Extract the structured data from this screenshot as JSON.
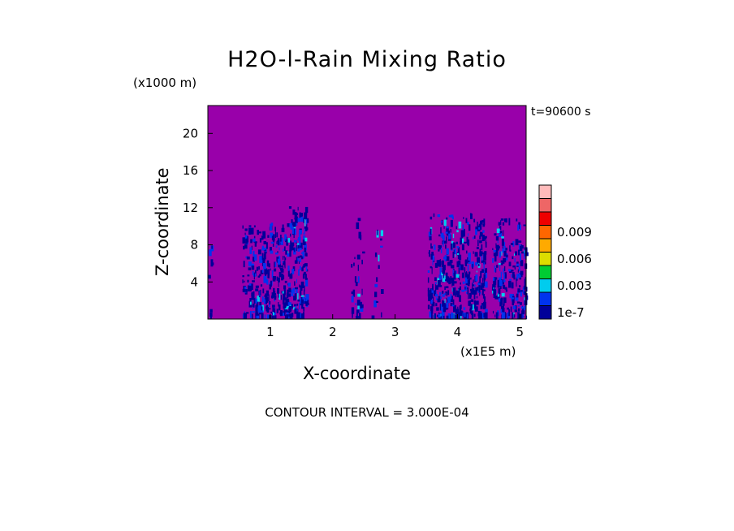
{
  "chart_data": {
    "type": "heatmap",
    "title": "H2O-l-Rain Mixing Ratio",
    "xlabel": "X-coordinate",
    "ylabel": "Z-coordinate",
    "x_unit_label": "(x1E5 m)",
    "y_unit_label": "(x1000 m)",
    "time_label": "t=90600 s",
    "contour_interval_label": "CONTOUR INTERVAL = 3.000E-04",
    "xlim": [
      0,
      5.1
    ],
    "ylim": [
      0,
      23
    ],
    "x_ticks": [
      1,
      2,
      3,
      4,
      5
    ],
    "x_tick_labels": [
      "1",
      "2",
      "3",
      "4",
      "5"
    ],
    "y_ticks": [
      4,
      8,
      12,
      16,
      20
    ],
    "y_tick_labels": [
      "4",
      "8",
      "12",
      "16",
      "20"
    ],
    "background_color": "#9900aa",
    "colorbar": {
      "colors": [
        "#000099",
        "#0033ee",
        "#00ccee",
        "#00cc33",
        "#dddd00",
        "#ffaa00",
        "#ff6600",
        "#ee0000",
        "#ee6666",
        "#ffbbbb"
      ],
      "labels": [
        {
          "text": "1e-7",
          "index": 0
        },
        {
          "text": "0.003",
          "index": 2
        },
        {
          "text": "0.006",
          "index": 4
        },
        {
          "text": "0.009",
          "index": 6
        }
      ]
    },
    "rain_bands": [
      {
        "x_start": 0.0,
        "x_end": 0.07,
        "z_top": 10.5,
        "density": 0.25
      },
      {
        "x_start": 0.55,
        "x_end": 1.28,
        "z_top": 10.5,
        "density": 0.8
      },
      {
        "x_start": 1.28,
        "x_end": 1.58,
        "z_top": 12.5,
        "density": 0.95
      },
      {
        "x_start": 2.28,
        "x_end": 2.48,
        "z_top": 11.0,
        "density": 0.3
      },
      {
        "x_start": 2.62,
        "x_end": 2.78,
        "z_top": 11.0,
        "density": 0.2
      },
      {
        "x_start": 3.52,
        "x_end": 4.45,
        "z_top": 11.5,
        "density": 0.85
      },
      {
        "x_start": 4.55,
        "x_end": 5.1,
        "z_top": 11.0,
        "density": 0.75
      }
    ]
  }
}
